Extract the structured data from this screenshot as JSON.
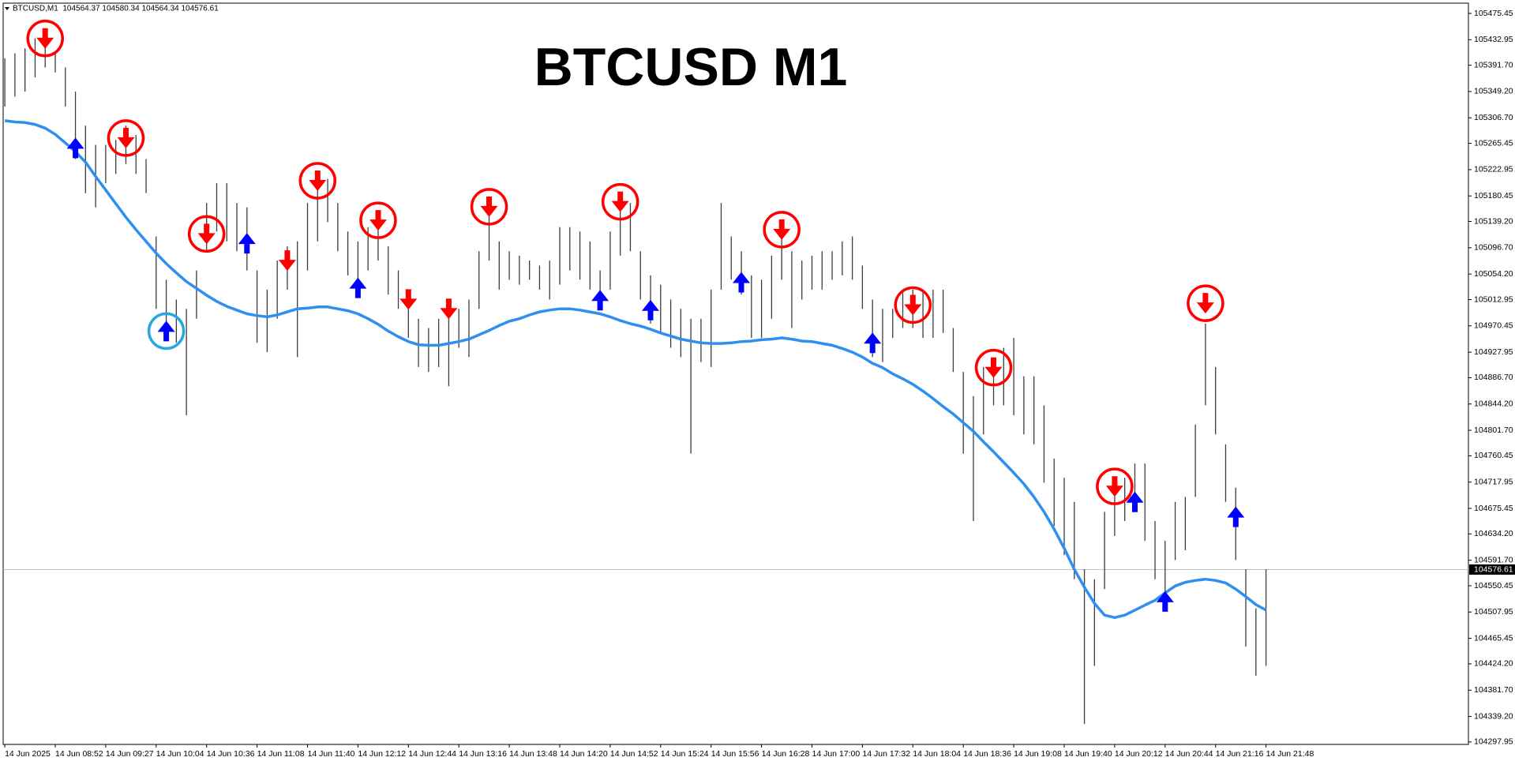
{
  "chart_data": {
    "type": "range",
    "title": "BTCUSD M1",
    "header": "BTCUSD,M1  104564.37 104580.34 104564.34 104576.61",
    "categories": [
      "14 Jun 2025",
      null,
      null,
      null,
      null,
      "14 Jun 08:52",
      null,
      null,
      null,
      null,
      "14 Jun 09:27",
      null,
      null,
      null,
      null,
      "14 Jun 10:04",
      null,
      null,
      null,
      null,
      "14 Jun 10:36",
      null,
      null,
      null,
      null,
      "14 Jun 11:08",
      null,
      null,
      null,
      null,
      "14 Jun 11:40",
      null,
      null,
      null,
      null,
      "14 Jun 12:12",
      null,
      null,
      null,
      null,
      "14 Jun 12:44",
      null,
      null,
      null,
      null,
      "14 Jun 13:16",
      null,
      null,
      null,
      null,
      "14 Jun 13:48",
      null,
      null,
      null,
      null,
      "14 Jun 14:20",
      null,
      null,
      null,
      null,
      "14 Jun 14:52",
      null,
      null,
      null,
      null,
      "14 Jun 15:24",
      null,
      null,
      null,
      null,
      "14 Jun 15:56",
      null,
      null,
      null,
      null,
      "14 Jun 16:28",
      null,
      null,
      null,
      null,
      "14 Jun 17:00",
      null,
      null,
      null,
      null,
      "14 Jun 17:32",
      null,
      null,
      null,
      null,
      "14 Jun 18:04",
      null,
      null,
      null,
      null,
      "14 Jun 18:36",
      null,
      null,
      null,
      null,
      "14 Jun 19:08",
      null,
      null,
      null,
      null,
      "14 Jun 19:40",
      null,
      null,
      null,
      null,
      "14 Jun 20:12",
      null,
      null,
      null,
      null,
      "14 Jun 20:44",
      null,
      null,
      null,
      null,
      "14 Jun 21:16",
      null,
      null,
      null,
      null,
      "14 Jun 21:48"
    ],
    "high": [
      105403,
      105411,
      105419,
      105435,
      105427,
      105411,
      105388,
      105349,
      105294,
      105263,
      105263,
      105271,
      105294,
      105279,
      105240,
      105115,
      105045,
      105013,
      104998,
      105060,
      105169,
      105201,
      105201,
      105169,
      105162,
      105060,
      105029,
      105076,
      105099,
      105107,
      105169,
      105193,
      105208,
      105169,
      105123,
      105107,
      105130,
      105130,
      105099,
      105060,
      105029,
      104982,
      104967,
      104982,
      104998,
      104998,
      105013,
      105091,
      105169,
      105107,
      105091,
      105084,
      105076,
      105068,
      105076,
      105130,
      105130,
      105123,
      105107,
      105060,
      105123,
      105162,
      105169,
      105091,
      105052,
      105037,
      105013,
      104998,
      104982,
      104982,
      105029,
      105169,
      105115,
      105091,
      105052,
      105045,
      105084,
      105123,
      105091,
      105076,
      105084,
      105091,
      105091,
      105107,
      105115,
      105068,
      105013,
      104998,
      104998,
      105029,
      105029,
      105029,
      105029,
      105029,
      104967,
      104896,
      104857,
      104904,
      104904,
      104935,
      104951,
      104889,
      104889,
      104842,
      104756,
      104725,
      104686,
      104577,
      104561,
      104670,
      104701,
      104725,
      104748,
      104748,
      104655,
      104623,
      104686,
      104694,
      104811,
      104974,
      104904,
      104779,
      104709,
      104577,
      104514,
      104577
    ],
    "low": [
      105325,
      105341,
      105349,
      105372,
      105388,
      105380,
      105325,
      105240,
      105185,
      105162,
      105201,
      105216,
      105232,
      105216,
      105185,
      104998,
      104951,
      104943,
      104826,
      104982,
      105091,
      105123,
      105107,
      105091,
      105060,
      104943,
      104928,
      104982,
      105029,
      104920,
      105060,
      105107,
      105138,
      105091,
      105052,
      105045,
      105060,
      105076,
      105021,
      104998,
      104951,
      104904,
      104896,
      104904,
      104873,
      104935,
      104920,
      104998,
      105076,
      105029,
      105045,
      105037,
      105045,
      105029,
      105013,
      105037,
      105060,
      105045,
      105029,
      104998,
      105029,
      105084,
      105091,
      105013,
      104974,
      104959,
      104935,
      104920,
      104764,
      104912,
      104904,
      105029,
      105045,
      105021,
      104951,
      104951,
      104982,
      105045,
      104967,
      105013,
      105029,
      105029,
      105045,
      105052,
      105045,
      104998,
      104920,
      104912,
      104951,
      104967,
      104967,
      104951,
      104951,
      104959,
      104896,
      104764,
      104655,
      104795,
      104842,
      104842,
      104826,
      104795,
      104779,
      104717,
      104647,
      104600,
      104561,
      104327,
      104421,
      104545,
      104631,
      104655,
      104686,
      104623,
      104561,
      104530,
      104592,
      104608,
      104694,
      104842,
      104795,
      104686,
      104592,
      104452,
      104405,
      104421
    ],
    "ma": [
      105302,
      105300,
      105299,
      105296,
      105290,
      105280,
      105266,
      105252,
      105235,
      105212,
      105190,
      105168,
      105146,
      105126,
      105107,
      105088,
      105071,
      105056,
      105042,
      105031,
      105020,
      105010,
      105002,
      104996,
      104990,
      104987,
      104985,
      104988,
      104993,
      104998,
      104999,
      105001,
      105001,
      104998,
      104995,
      104990,
      104982,
      104973,
      104962,
      104953,
      104945,
      104940,
      104939,
      104939,
      104942,
      104945,
      104949,
      104956,
      104963,
      104971,
      104978,
      104982,
      104988,
      104993,
      104996,
      104998,
      104998,
      104996,
      104993,
      104990,
      104985,
      104979,
      104974,
      104970,
      104965,
      104959,
      104954,
      104949,
      104946,
      104943,
      104942,
      104942,
      104943,
      104945,
      104946,
      104948,
      104949,
      104951,
      104949,
      104946,
      104945,
      104942,
      104939,
      104934,
      104928,
      104920,
      104910,
      104903,
      104893,
      104885,
      104876,
      104865,
      104853,
      104840,
      104828,
      104814,
      104800,
      104783,
      104767,
      104750,
      104733,
      104715,
      104694,
      104670,
      104642,
      104611,
      104577,
      104548,
      104522,
      104503,
      104499,
      104503,
      104511,
      104519,
      104527,
      104539,
      104550,
      104556,
      104559,
      104561,
      104559,
      104555,
      104545,
      104533,
      104520,
      104511
    ],
    "signals": [
      {
        "bar": 4,
        "price": 105435,
        "signal": "sell",
        "circled": true
      },
      {
        "bar": 7,
        "price": 105258,
        "signal": "buy",
        "circled": false
      },
      {
        "bar": 12,
        "price": 105274,
        "signal": "sell",
        "circled": true
      },
      {
        "bar": 16,
        "price": 104962,
        "signal": "buy",
        "circled": true
      },
      {
        "bar": 20,
        "price": 105119,
        "signal": "sell",
        "circled": true
      },
      {
        "bar": 24,
        "price": 105104,
        "signal": "buy",
        "circled": false
      },
      {
        "bar": 28,
        "price": 105076,
        "signal": "sell",
        "circled": false
      },
      {
        "bar": 31,
        "price": 105205,
        "signal": "sell",
        "circled": true
      },
      {
        "bar": 35,
        "price": 105032,
        "signal": "buy",
        "circled": false
      },
      {
        "bar": 37,
        "price": 105141,
        "signal": "sell",
        "circled": true
      },
      {
        "bar": 40,
        "price": 105013,
        "signal": "sell",
        "circled": false
      },
      {
        "bar": 44,
        "price": 104998,
        "signal": "sell",
        "circled": false
      },
      {
        "bar": 48,
        "price": 105163,
        "signal": "sell",
        "circled": true
      },
      {
        "bar": 59,
        "price": 105012,
        "signal": "buy",
        "circled": false
      },
      {
        "bar": 61,
        "price": 105171,
        "signal": "sell",
        "circled": true
      },
      {
        "bar": 64,
        "price": 104996,
        "signal": "buy",
        "circled": false
      },
      {
        "bar": 73,
        "price": 105041,
        "signal": "buy",
        "circled": false
      },
      {
        "bar": 77,
        "price": 105126,
        "signal": "sell",
        "circled": true
      },
      {
        "bar": 86,
        "price": 104943,
        "signal": "buy",
        "circled": false
      },
      {
        "bar": 90,
        "price": 105004,
        "signal": "sell",
        "circled": true
      },
      {
        "bar": 98,
        "price": 104903,
        "signal": "sell",
        "circled": true
      },
      {
        "bar": 110,
        "price": 104711,
        "signal": "sell",
        "circled": true
      },
      {
        "bar": 112,
        "price": 104686,
        "signal": "buy",
        "circled": false
      },
      {
        "bar": 115,
        "price": 104525,
        "signal": "buy",
        "circled": false
      },
      {
        "bar": 119,
        "price": 105007,
        "signal": "sell",
        "circled": true
      },
      {
        "bar": 122,
        "price": 104662,
        "signal": "buy",
        "circled": false
      }
    ],
    "current_price": 104576.61,
    "ylim": [
      104294,
      105492
    ],
    "yticks": [
      105475.45,
      105432.95,
      {
        "value": 105391.7,
        "label": "105391.70"
      },
      {
        "value": 105349.2,
        "label": "105349.20"
      },
      {
        "value": 105306.7,
        "label": "105306.70"
      },
      105265.45,
      105222.95,
      105180.45,
      {
        "value": 105139.2,
        "label": "105139.20"
      },
      {
        "value": 105096.7,
        "label": "105096.70"
      },
      {
        "value": 105054.2,
        "label": "105054.20"
      },
      105012.95,
      104970.45,
      104927.95,
      {
        "value": 104886.7,
        "label": "104886.70"
      },
      {
        "value": 104844.2,
        "label": "104844.20"
      },
      {
        "value": 104801.7,
        "label": "104801.70"
      },
      104760.45,
      104717.95,
      104675.45,
      {
        "value": 104634.2,
        "label": "104634.20"
      },
      {
        "value": 104591.7,
        "label": "104591.70"
      },
      104550.45,
      104507.95,
      104465.45,
      {
        "value": 104424.2,
        "label": "104424.20"
      },
      {
        "value": 104381.7,
        "label": "104381.70"
      },
      {
        "value": 104339.2,
        "label": "104339.20"
      },
      104297.95
    ],
    "grid": false,
    "bar_color": "#3c3c3c",
    "ma_color": "#2f8ff0",
    "sell_color": "#ff0000",
    "buy_color": "#0000ff",
    "buy_ring_color": "#29a8e0"
  }
}
